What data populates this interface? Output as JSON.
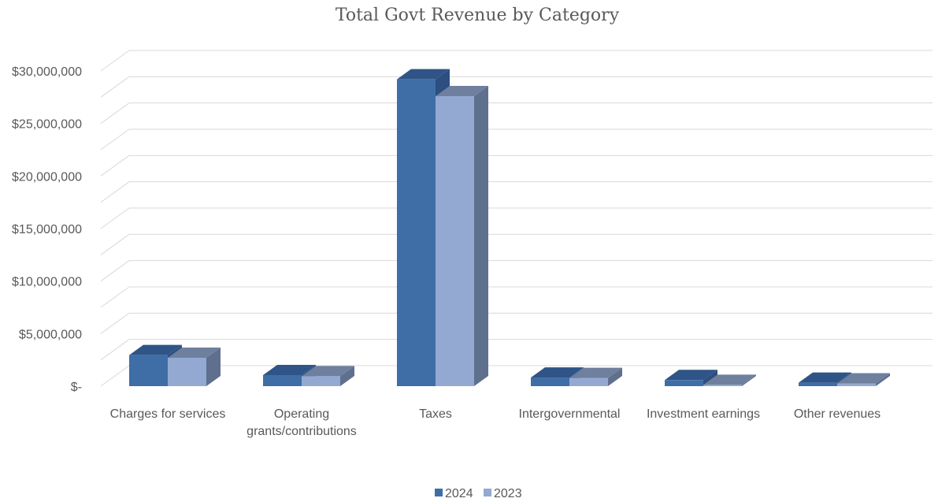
{
  "chart_data": {
    "type": "bar",
    "title": "Total Govt Revenue by Category",
    "categories": [
      "Charges for services",
      "Operating grants/contributions",
      "Taxes",
      "Intergovernmental",
      "Investment earnings",
      "Other revenues"
    ],
    "category_lines": [
      [
        "Charges for services"
      ],
      [
        "Operating",
        "grants/contributions"
      ],
      [
        "Taxes"
      ],
      [
        "Intergovernmental"
      ],
      [
        "Investment earnings"
      ],
      [
        "Other revenues"
      ]
    ],
    "series": [
      {
        "name": "2024",
        "values": [
          2950000,
          1050000,
          29200000,
          820000,
          580000,
          330000
        ],
        "color": "#3f6ea6",
        "top_color": "#2f5487",
        "side_color": "#2c4f80"
      },
      {
        "name": "2023",
        "values": [
          2700000,
          950000,
          27600000,
          780000,
          120000,
          260000
        ],
        "color": "#93a9d2",
        "top_color": "#6f7f9e",
        "side_color": "#5f6f8e"
      }
    ],
    "ylim": [
      0,
      30000000
    ],
    "yticks": [
      0,
      5000000,
      10000000,
      15000000,
      20000000,
      25000000,
      30000000
    ],
    "ytick_labels": [
      "$-",
      "$5,000,000",
      "$10,000,000",
      "$15,000,000",
      "$20,000,000",
      "$25,000,000",
      "$30,000,000"
    ],
    "xlabel": "",
    "ylabel": "",
    "grid": true,
    "legend_position": "bottom",
    "style": "3d-clustered-column"
  }
}
